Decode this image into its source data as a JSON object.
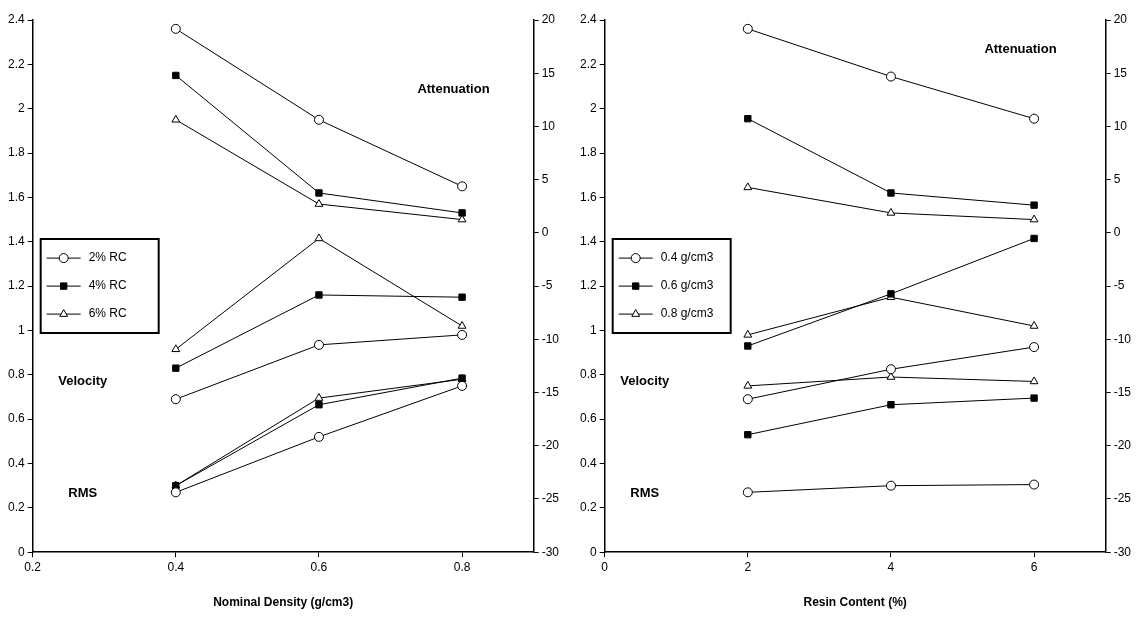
{
  "chart_data": [
    {
      "type": "line",
      "xlabel": "Nominal Density (g/cm3)",
      "x": [
        0.4,
        0.6,
        0.8
      ],
      "xlim": [
        0.2,
        0.9
      ],
      "xticks": [
        0.2,
        0.4,
        0.6,
        0.8
      ],
      "ylim": [
        0,
        2.4
      ],
      "yticks": [
        0,
        0.2,
        0.4,
        0.6,
        0.8,
        1,
        1.2,
        1.4,
        1.6,
        1.8,
        2,
        2.2,
        2.4
      ],
      "y2lim": [
        -30,
        20
      ],
      "y2ticks": [
        -30,
        -25,
        -20,
        -15,
        -10,
        -5,
        0,
        5,
        10,
        15,
        20
      ],
      "grid": false,
      "legend": "left",
      "line_style": "solid",
      "series": [
        {
          "name": "2% RC",
          "color": "#000000",
          "marker": "circle",
          "values": [
            2.36,
            1.95,
            1.65
          ]
        },
        {
          "name": "4% RC",
          "color": "#000000",
          "marker": "square",
          "values": [
            2.15,
            1.62,
            1.53
          ]
        },
        {
          "name": "6% RC",
          "color": "#000000",
          "marker": "triangle",
          "values": [
            1.95,
            1.57,
            1.5
          ]
        },
        {
          "color": "#000000",
          "marker": "circle",
          "values": [
            0.69,
            0.935,
            0.98
          ]
        },
        {
          "color": "#000000",
          "marker": "square",
          "values": [
            0.83,
            1.16,
            1.15
          ]
        },
        {
          "color": "#000000",
          "marker": "triangle",
          "values": [
            0.915,
            1.415,
            1.02
          ]
        },
        {
          "color": "#000000",
          "marker": "circle",
          "values": [
            0.27,
            0.52,
            0.75
          ]
        },
        {
          "color": "#000000",
          "marker": "square",
          "values": [
            0.3,
            0.665,
            0.785
          ]
        },
        {
          "color": "#000000",
          "marker": "triangle",
          "values": [
            0.3,
            0.695,
            0.78
          ]
        }
      ],
      "annotations": [
        "Attenuation",
        "Velocity",
        "RMS"
      ]
    },
    {
      "type": "line",
      "xlabel": "Resin Content (%)",
      "x": [
        2,
        4,
        6
      ],
      "xlim": [
        0,
        7
      ],
      "xticks": [
        0,
        2,
        4,
        6
      ],
      "ylim": [
        0,
        2.4
      ],
      "yticks": [
        0,
        0.2,
        0.4,
        0.6,
        0.8,
        1,
        1.2,
        1.4,
        1.6,
        1.8,
        2,
        2.2,
        2.4
      ],
      "y2lim": [
        -30,
        20
      ],
      "y2ticks": [
        -30,
        -25,
        -20,
        -15,
        -10,
        -5,
        0,
        5,
        10,
        15,
        20
      ],
      "grid": false,
      "legend": "left",
      "line_style": "solid",
      "series": [
        {
          "name": "0.4 g/cm3",
          "color": "#000000",
          "marker": "circle",
          "values": [
            2.36,
            2.145,
            1.955
          ]
        },
        {
          "name": "0.6 g/cm3",
          "color": "#000000",
          "marker": "square",
          "values": [
            1.955,
            1.62,
            1.565
          ]
        },
        {
          "name": "0.8 g/cm3",
          "color": "#000000",
          "marker": "triangle",
          "values": [
            1.645,
            1.53,
            1.5
          ]
        },
        {
          "color": "#000000",
          "marker": "circle",
          "values": [
            0.69,
            0.825,
            0.925
          ]
        },
        {
          "color": "#000000",
          "marker": "square",
          "values": [
            0.93,
            1.165,
            1.415
          ]
        },
        {
          "color": "#000000",
          "marker": "triangle",
          "values": [
            0.98,
            1.15,
            1.02
          ]
        },
        {
          "color": "#000000",
          "marker": "circle",
          "values": [
            0.27,
            0.3,
            0.305
          ]
        },
        {
          "color": "#000000",
          "marker": "square",
          "values": [
            0.53,
            0.665,
            0.695
          ]
        },
        {
          "color": "#000000",
          "marker": "triangle",
          "values": [
            0.75,
            0.79,
            0.77
          ]
        }
      ],
      "annotations": [
        "Attenuation",
        "Velocity",
        "RMS"
      ]
    }
  ]
}
